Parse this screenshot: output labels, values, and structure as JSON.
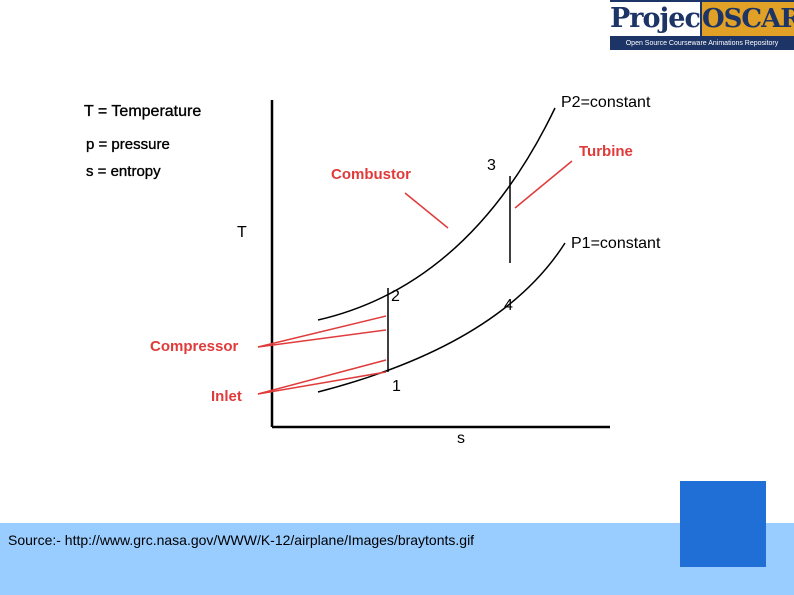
{
  "logo": {
    "word1": "Project",
    "word2": "OSCAR",
    "tagline": "Open Source Courseware Animations Repository"
  },
  "definitions": {
    "temperature": "T = Temperature",
    "pressure": "p = pressure",
    "entropy": "s = entropy"
  },
  "axes": {
    "y_label": "T",
    "x_label": "s"
  },
  "curves": {
    "high_pressure": "P2=constant",
    "low_pressure": "P1=constant"
  },
  "points": {
    "p1": "1",
    "p2": "2",
    "p3": "3",
    "p4": "4"
  },
  "components": {
    "combustor": "Combustor",
    "turbine": "Turbine",
    "compressor": "Compressor",
    "inlet": "Inlet"
  },
  "footer": {
    "source": "Source:- http://www.grc.nasa.gov/WWW/K-12/airplane/Images/braytonts.gif"
  },
  "colors": {
    "component_label": "#e03b3b",
    "footer_band": "#99ccff",
    "blue_square": "#1f6fd6",
    "logo_navy": "#1d3466",
    "logo_gold": "#e0a126"
  }
}
